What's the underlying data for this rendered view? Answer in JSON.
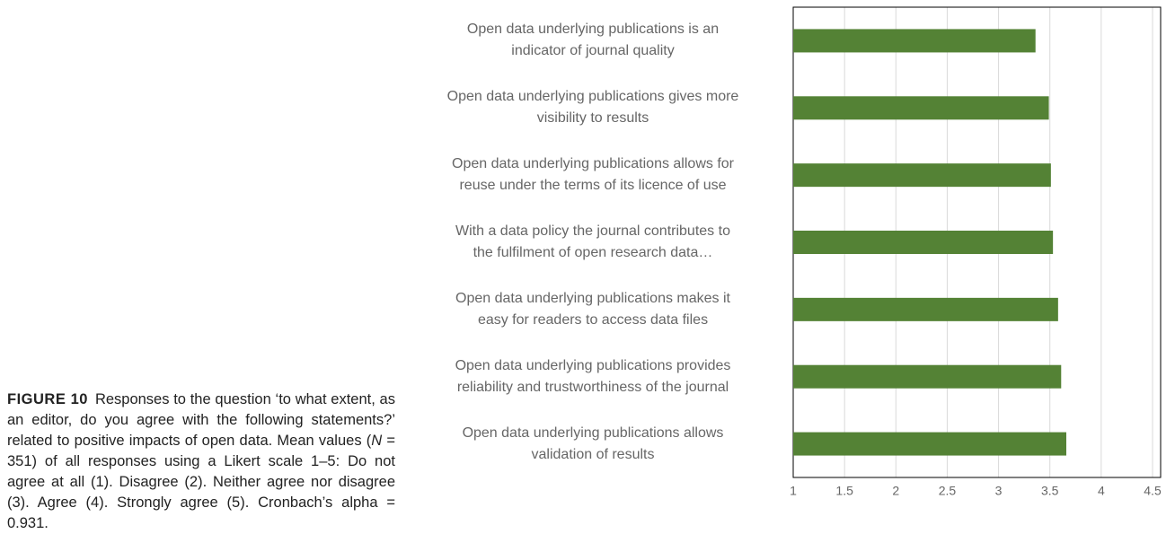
{
  "chart_data": {
    "type": "bar",
    "orientation": "horizontal",
    "caption": {
      "label": "FIGURE 10",
      "text_before": "Responses to the question ‘to what extent, as an editor, do you agree with the following statements?’ related to positive impacts of open data. Mean values (",
      "text_italic": "N",
      "text_after": " = 351) of all responses using a Likert scale 1–5: Do not agree at all (1). Disagree (2). Neither agree nor disagree (3). Agree (4). Strongly agree (5). Cronbach’s alpha = 0.931."
    },
    "categories": [
      "Open data underlying publications is an\nindicator of journal quality",
      "Open data underlying publications gives more\nvisibility to results",
      "Open data underlying publications allows for\nreuse under the terms of its licence of use",
      "With a data policy the journal contributes to\nthe fulfilment of open research data…",
      "Open data underlying publications makes it\neasy for readers to access data files",
      "Open data underlying publications provides\nreliability and trustworthiness of the journal",
      "Open data underlying publications allows\nvalidation of results"
    ],
    "values": [
      3.36,
      3.49,
      3.51,
      3.53,
      3.58,
      3.61,
      3.66
    ],
    "color": "#548235",
    "xlim": [
      1,
      4.5
    ],
    "xticks": [
      1,
      1.5,
      2,
      2.5,
      3,
      3.5,
      4,
      4.5
    ],
    "grid": true
  }
}
